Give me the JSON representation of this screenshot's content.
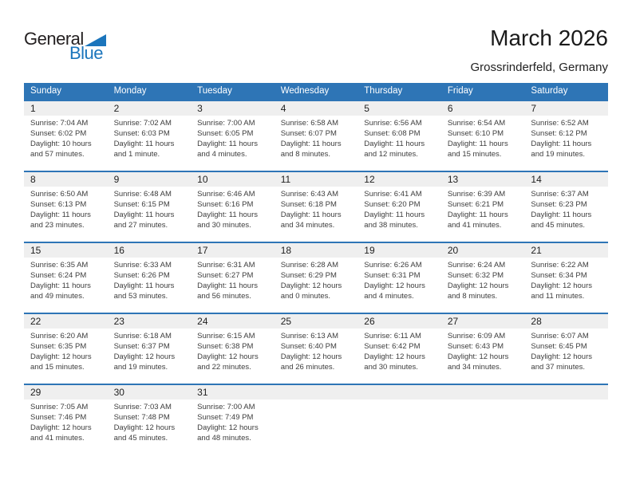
{
  "logo": {
    "word1": "General",
    "word2": "Blue"
  },
  "header": {
    "title": "March 2026",
    "subtitle": "Grossrinderfeld, Germany"
  },
  "weekdays": [
    "Sunday",
    "Monday",
    "Tuesday",
    "Wednesday",
    "Thursday",
    "Friday",
    "Saturday"
  ],
  "colors": {
    "header_blue": "#2e75b6",
    "accent_blue": "#1b75bc",
    "day_band_gray": "#efefef"
  },
  "weeks": [
    [
      {
        "day": "1",
        "sunrise": "Sunrise: 7:04 AM",
        "sunset": "Sunset: 6:02 PM",
        "daylight1": "Daylight: 10 hours",
        "daylight2": "and 57 minutes."
      },
      {
        "day": "2",
        "sunrise": "Sunrise: 7:02 AM",
        "sunset": "Sunset: 6:03 PM",
        "daylight1": "Daylight: 11 hours",
        "daylight2": "and 1 minute."
      },
      {
        "day": "3",
        "sunrise": "Sunrise: 7:00 AM",
        "sunset": "Sunset: 6:05 PM",
        "daylight1": "Daylight: 11 hours",
        "daylight2": "and 4 minutes."
      },
      {
        "day": "4",
        "sunrise": "Sunrise: 6:58 AM",
        "sunset": "Sunset: 6:07 PM",
        "daylight1": "Daylight: 11 hours",
        "daylight2": "and 8 minutes."
      },
      {
        "day": "5",
        "sunrise": "Sunrise: 6:56 AM",
        "sunset": "Sunset: 6:08 PM",
        "daylight1": "Daylight: 11 hours",
        "daylight2": "and 12 minutes."
      },
      {
        "day": "6",
        "sunrise": "Sunrise: 6:54 AM",
        "sunset": "Sunset: 6:10 PM",
        "daylight1": "Daylight: 11 hours",
        "daylight2": "and 15 minutes."
      },
      {
        "day": "7",
        "sunrise": "Sunrise: 6:52 AM",
        "sunset": "Sunset: 6:12 PM",
        "daylight1": "Daylight: 11 hours",
        "daylight2": "and 19 minutes."
      }
    ],
    [
      {
        "day": "8",
        "sunrise": "Sunrise: 6:50 AM",
        "sunset": "Sunset: 6:13 PM",
        "daylight1": "Daylight: 11 hours",
        "daylight2": "and 23 minutes."
      },
      {
        "day": "9",
        "sunrise": "Sunrise: 6:48 AM",
        "sunset": "Sunset: 6:15 PM",
        "daylight1": "Daylight: 11 hours",
        "daylight2": "and 27 minutes."
      },
      {
        "day": "10",
        "sunrise": "Sunrise: 6:46 AM",
        "sunset": "Sunset: 6:16 PM",
        "daylight1": "Daylight: 11 hours",
        "daylight2": "and 30 minutes."
      },
      {
        "day": "11",
        "sunrise": "Sunrise: 6:43 AM",
        "sunset": "Sunset: 6:18 PM",
        "daylight1": "Daylight: 11 hours",
        "daylight2": "and 34 minutes."
      },
      {
        "day": "12",
        "sunrise": "Sunrise: 6:41 AM",
        "sunset": "Sunset: 6:20 PM",
        "daylight1": "Daylight: 11 hours",
        "daylight2": "and 38 minutes."
      },
      {
        "day": "13",
        "sunrise": "Sunrise: 6:39 AM",
        "sunset": "Sunset: 6:21 PM",
        "daylight1": "Daylight: 11 hours",
        "daylight2": "and 41 minutes."
      },
      {
        "day": "14",
        "sunrise": "Sunrise: 6:37 AM",
        "sunset": "Sunset: 6:23 PM",
        "daylight1": "Daylight: 11 hours",
        "daylight2": "and 45 minutes."
      }
    ],
    [
      {
        "day": "15",
        "sunrise": "Sunrise: 6:35 AM",
        "sunset": "Sunset: 6:24 PM",
        "daylight1": "Daylight: 11 hours",
        "daylight2": "and 49 minutes."
      },
      {
        "day": "16",
        "sunrise": "Sunrise: 6:33 AM",
        "sunset": "Sunset: 6:26 PM",
        "daylight1": "Daylight: 11 hours",
        "daylight2": "and 53 minutes."
      },
      {
        "day": "17",
        "sunrise": "Sunrise: 6:31 AM",
        "sunset": "Sunset: 6:27 PM",
        "daylight1": "Daylight: 11 hours",
        "daylight2": "and 56 minutes."
      },
      {
        "day": "18",
        "sunrise": "Sunrise: 6:28 AM",
        "sunset": "Sunset: 6:29 PM",
        "daylight1": "Daylight: 12 hours",
        "daylight2": "and 0 minutes."
      },
      {
        "day": "19",
        "sunrise": "Sunrise: 6:26 AM",
        "sunset": "Sunset: 6:31 PM",
        "daylight1": "Daylight: 12 hours",
        "daylight2": "and 4 minutes."
      },
      {
        "day": "20",
        "sunrise": "Sunrise: 6:24 AM",
        "sunset": "Sunset: 6:32 PM",
        "daylight1": "Daylight: 12 hours",
        "daylight2": "and 8 minutes."
      },
      {
        "day": "21",
        "sunrise": "Sunrise: 6:22 AM",
        "sunset": "Sunset: 6:34 PM",
        "daylight1": "Daylight: 12 hours",
        "daylight2": "and 11 minutes."
      }
    ],
    [
      {
        "day": "22",
        "sunrise": "Sunrise: 6:20 AM",
        "sunset": "Sunset: 6:35 PM",
        "daylight1": "Daylight: 12 hours",
        "daylight2": "and 15 minutes."
      },
      {
        "day": "23",
        "sunrise": "Sunrise: 6:18 AM",
        "sunset": "Sunset: 6:37 PM",
        "daylight1": "Daylight: 12 hours",
        "daylight2": "and 19 minutes."
      },
      {
        "day": "24",
        "sunrise": "Sunrise: 6:15 AM",
        "sunset": "Sunset: 6:38 PM",
        "daylight1": "Daylight: 12 hours",
        "daylight2": "and 22 minutes."
      },
      {
        "day": "25",
        "sunrise": "Sunrise: 6:13 AM",
        "sunset": "Sunset: 6:40 PM",
        "daylight1": "Daylight: 12 hours",
        "daylight2": "and 26 minutes."
      },
      {
        "day": "26",
        "sunrise": "Sunrise: 6:11 AM",
        "sunset": "Sunset: 6:42 PM",
        "daylight1": "Daylight: 12 hours",
        "daylight2": "and 30 minutes."
      },
      {
        "day": "27",
        "sunrise": "Sunrise: 6:09 AM",
        "sunset": "Sunset: 6:43 PM",
        "daylight1": "Daylight: 12 hours",
        "daylight2": "and 34 minutes."
      },
      {
        "day": "28",
        "sunrise": "Sunrise: 6:07 AM",
        "sunset": "Sunset: 6:45 PM",
        "daylight1": "Daylight: 12 hours",
        "daylight2": "and 37 minutes."
      }
    ],
    [
      {
        "day": "29",
        "sunrise": "Sunrise: 7:05 AM",
        "sunset": "Sunset: 7:46 PM",
        "daylight1": "Daylight: 12 hours",
        "daylight2": "and 41 minutes."
      },
      {
        "day": "30",
        "sunrise": "Sunrise: 7:03 AM",
        "sunset": "Sunset: 7:48 PM",
        "daylight1": "Daylight: 12 hours",
        "daylight2": "and 45 minutes."
      },
      {
        "day": "31",
        "sunrise": "Sunrise: 7:00 AM",
        "sunset": "Sunset: 7:49 PM",
        "daylight1": "Daylight: 12 hours",
        "daylight2": "and 48 minutes."
      },
      null,
      null,
      null,
      null
    ]
  ]
}
